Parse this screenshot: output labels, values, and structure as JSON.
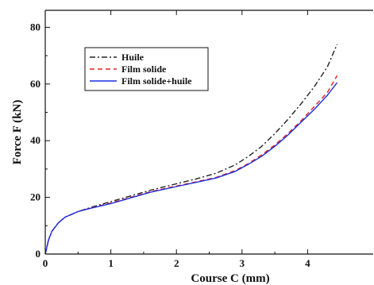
{
  "chart_data": {
    "type": "line",
    "title": "",
    "xlabel": "Course C (mm)",
    "ylabel": "Force F (kN)",
    "xlim": [
      0,
      5
    ],
    "ylim": [
      0,
      86
    ],
    "xticks": [
      0,
      1,
      2,
      3,
      4
    ],
    "yticks": [
      0,
      20,
      40,
      60,
      80
    ],
    "legend_position": "top-left",
    "grid": false,
    "series": [
      {
        "name": "Huile",
        "color": "#222222",
        "dash": "dash-dot",
        "x": [
          0,
          0.02,
          0.05,
          0.1,
          0.2,
          0.3,
          0.5,
          0.7,
          1.0,
          1.3,
          1.6,
          2.0,
          2.3,
          2.6,
          2.9,
          3.1,
          3.3,
          3.5,
          3.7,
          3.9,
          4.1,
          4.3,
          4.45
        ],
        "y": [
          0,
          2,
          5,
          8,
          11,
          13,
          15,
          16.5,
          18.5,
          20.5,
          22.5,
          24.8,
          26.5,
          28.5,
          31.5,
          34.5,
          38,
          42.5,
          47.5,
          53,
          59,
          66,
          74
        ]
      },
      {
        "name": "Film solide",
        "color": "#e02020",
        "dash": "dash",
        "x": [
          0,
          0.02,
          0.05,
          0.1,
          0.2,
          0.3,
          0.5,
          0.7,
          1.0,
          1.3,
          1.6,
          2.0,
          2.3,
          2.6,
          2.9,
          3.1,
          3.3,
          3.5,
          3.7,
          3.9,
          4.1,
          4.3,
          4.45
        ],
        "y": [
          0,
          2,
          5,
          8,
          11,
          13,
          15,
          16.3,
          18,
          20,
          22,
          24,
          25.5,
          27,
          29.5,
          32,
          35,
          38.5,
          42.5,
          47,
          52,
          57,
          63
        ]
      },
      {
        "name": "Film solide+huile",
        "color": "#1a2ee0",
        "dash": "solid",
        "x": [
          0,
          0.02,
          0.05,
          0.1,
          0.2,
          0.3,
          0.5,
          0.7,
          1.0,
          1.3,
          1.6,
          2.0,
          2.3,
          2.6,
          2.9,
          3.1,
          3.3,
          3.5,
          3.7,
          3.9,
          4.1,
          4.3,
          4.45
        ],
        "y": [
          0,
          2,
          5,
          8,
          11,
          13,
          15,
          16.2,
          17.8,
          19.8,
          21.8,
          23.8,
          25.3,
          26.8,
          29.2,
          31.7,
          34.5,
          38,
          42,
          46.5,
          51,
          56,
          60.5
        ]
      }
    ]
  }
}
